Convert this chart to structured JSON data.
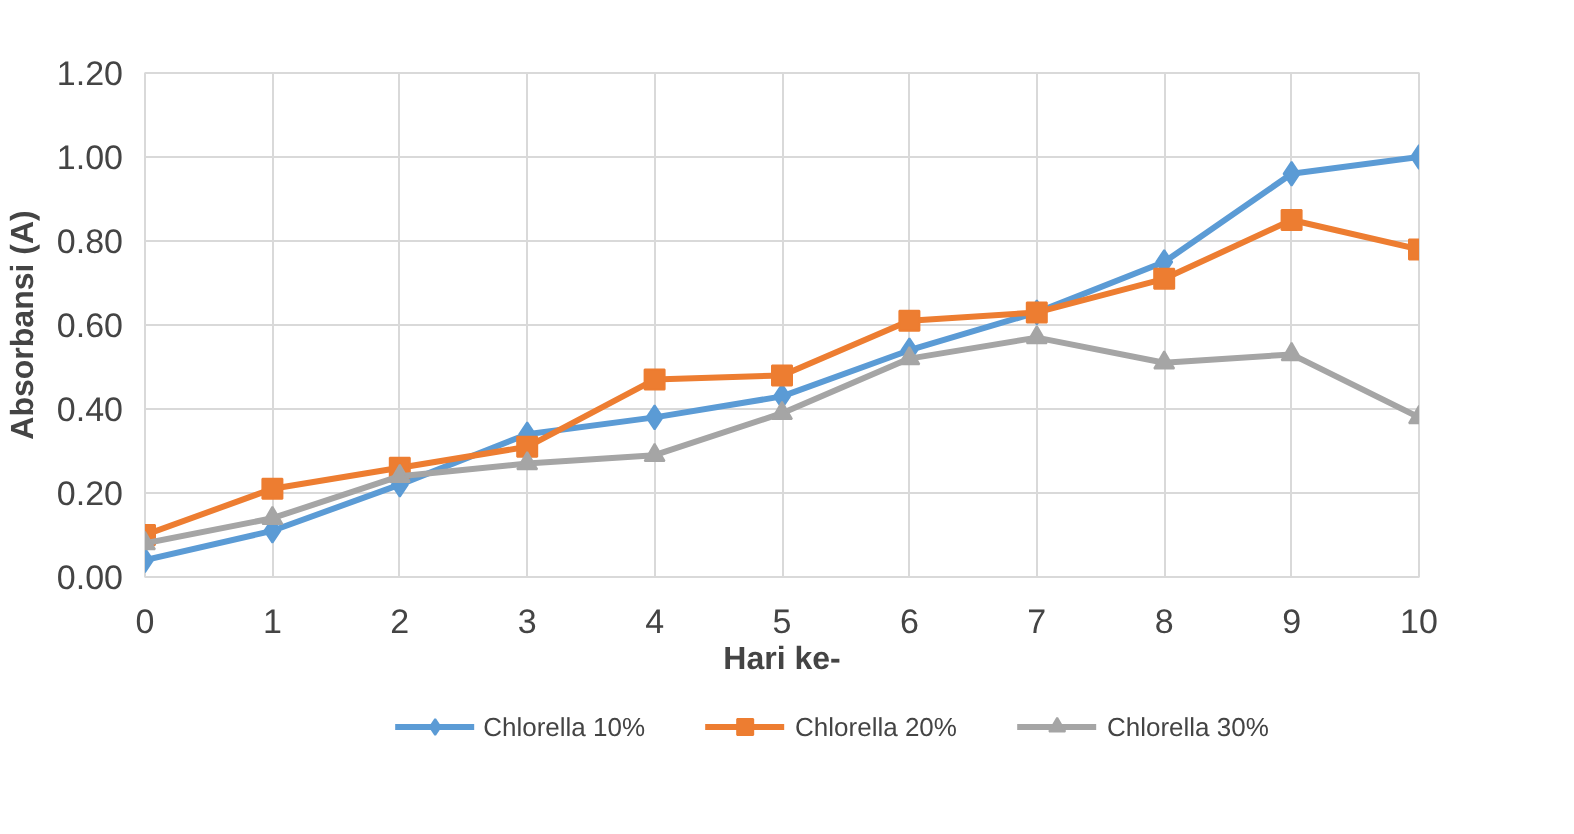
{
  "chart_data": {
    "type": "line",
    "xlabel": "Hari ke-",
    "ylabel": "Absorbansi (A)",
    "x": [
      0,
      1,
      2,
      3,
      4,
      5,
      6,
      7,
      8,
      9,
      10
    ],
    "xlim": [
      0,
      10
    ],
    "xticks": [
      0,
      1,
      2,
      3,
      4,
      5,
      6,
      7,
      8,
      9,
      10
    ],
    "ylim": [
      0,
      1.2
    ],
    "yticks": [
      {
        "value": 0,
        "label": "0.00"
      },
      {
        "value": 0.2,
        "label": "0.20"
      },
      {
        "value": 0.4,
        "label": "0.40"
      },
      {
        "value": 0.6,
        "label": "0.60"
      },
      {
        "value": 0.8,
        "label": "0.80"
      },
      {
        "value": 1.0,
        "label": "1.00"
      },
      {
        "value": 1.2,
        "label": "1.20"
      }
    ],
    "grid": true,
    "legend": "bottom",
    "line_style": "solid",
    "series": [
      {
        "name": "Chlorella 10%",
        "color": "#5b9bd5",
        "marker": "diamond",
        "values": [
          0.04,
          0.11,
          0.22,
          0.34,
          0.38,
          0.43,
          0.54,
          0.63,
          0.75,
          0.96,
          1.0
        ]
      },
      {
        "name": "Chlorella 20%",
        "color": "#ed7d31",
        "marker": "square",
        "values": [
          0.1,
          0.21,
          0.26,
          0.31,
          0.47,
          0.48,
          0.61,
          0.63,
          0.71,
          0.85,
          0.78
        ]
      },
      {
        "name": "Chlorella 30%",
        "color": "#a5a5a5",
        "marker": "triangle",
        "values": [
          0.08,
          0.14,
          0.24,
          0.27,
          0.29,
          0.39,
          0.52,
          0.57,
          0.51,
          0.53,
          0.38
        ]
      }
    ]
  }
}
